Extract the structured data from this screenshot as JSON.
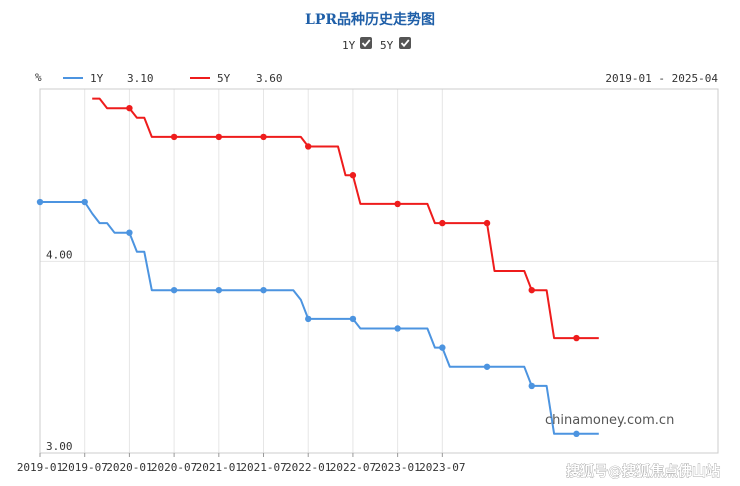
{
  "chart_data": {
    "type": "line",
    "title": "LPR品种历史走势图",
    "ylabel": "%",
    "date_range_label": "2019-01 - 2025-04",
    "ylim": [
      3.0,
      4.9
    ],
    "y_ticks": [
      "4.00",
      "3.00"
    ],
    "y_tick_values": [
      4.0,
      3.0
    ],
    "x_tick_labels": [
      "2019-01",
      "2019-07",
      "2020-01",
      "2020-07",
      "2021-01",
      "2021-07",
      "2022-01",
      "2022-07",
      "2023-01",
      "2023-07"
    ],
    "x_tick_values": [
      "2019-01",
      "2019-07",
      "2020-01",
      "2020-07",
      "2021-01",
      "2021-07",
      "2022-01",
      "2022-07",
      "2023-01",
      "2023-07"
    ],
    "x_range": [
      "2019-01",
      "2026-08"
    ],
    "grid": true,
    "checkboxes": [
      {
        "label": "1Y",
        "checked": true
      },
      {
        "label": "5Y",
        "checked": true
      }
    ],
    "series": [
      {
        "name": "1Y",
        "legend_value": "3.10",
        "color": "#4c94e0",
        "points": [
          [
            "2019-01",
            4.31
          ],
          [
            "2019-07",
            4.31
          ],
          [
            "2019-08",
            4.25
          ],
          [
            "2019-09",
            4.2
          ],
          [
            "2019-10",
            4.2
          ],
          [
            "2019-11",
            4.15
          ],
          [
            "2019-12",
            4.15
          ],
          [
            "2020-01",
            4.15
          ],
          [
            "2020-02",
            4.05
          ],
          [
            "2020-03",
            4.05
          ],
          [
            "2020-04",
            3.85
          ],
          [
            "2020-05",
            3.85
          ],
          [
            "2020-07",
            3.85
          ],
          [
            "2021-01",
            3.85
          ],
          [
            "2021-07",
            3.85
          ],
          [
            "2021-11",
            3.85
          ],
          [
            "2021-12",
            3.8
          ],
          [
            "2022-01",
            3.7
          ],
          [
            "2022-07",
            3.7
          ],
          [
            "2022-08",
            3.65
          ],
          [
            "2023-01",
            3.65
          ],
          [
            "2023-05",
            3.65
          ],
          [
            "2023-06",
            3.55
          ],
          [
            "2023-07",
            3.55
          ],
          [
            "2023-08",
            3.45
          ],
          [
            "2024-01",
            3.45
          ],
          [
            "2024-06",
            3.45
          ],
          [
            "2024-07",
            3.35
          ],
          [
            "2024-08",
            3.35
          ],
          [
            "2024-09",
            3.35
          ],
          [
            "2024-10",
            3.1
          ],
          [
            "2025-01",
            3.1
          ],
          [
            "2025-04",
            3.1
          ]
        ],
        "markers": [
          "2019-01",
          "2019-07",
          "2020-01",
          "2020-07",
          "2021-01",
          "2021-07",
          "2022-01",
          "2022-07",
          "2023-01",
          "2023-07",
          "2024-01",
          "2024-07",
          "2025-01"
        ]
      },
      {
        "name": "5Y",
        "legend_value": "3.60",
        "color": "#ee1c1c",
        "points": [
          [
            "2019-08",
            4.85
          ],
          [
            "2019-09",
            4.85
          ],
          [
            "2019-10",
            4.8
          ],
          [
            "2019-11",
            4.8
          ],
          [
            "2019-12",
            4.8
          ],
          [
            "2020-01",
            4.8
          ],
          [
            "2020-02",
            4.75
          ],
          [
            "2020-03",
            4.75
          ],
          [
            "2020-04",
            4.65
          ],
          [
            "2020-07",
            4.65
          ],
          [
            "2021-01",
            4.65
          ],
          [
            "2021-07",
            4.65
          ],
          [
            "2021-12",
            4.65
          ],
          [
            "2022-01",
            4.6
          ],
          [
            "2022-03",
            4.6
          ],
          [
            "2022-05",
            4.6
          ],
          [
            "2022-06",
            4.45
          ],
          [
            "2022-07",
            4.45
          ],
          [
            "2022-08",
            4.3
          ],
          [
            "2023-01",
            4.3
          ],
          [
            "2023-05",
            4.3
          ],
          [
            "2023-06",
            4.2
          ],
          [
            "2023-07",
            4.2
          ],
          [
            "2024-01",
            4.2
          ],
          [
            "2024-02",
            3.95
          ],
          [
            "2024-06",
            3.95
          ],
          [
            "2024-07",
            3.85
          ],
          [
            "2024-09",
            3.85
          ],
          [
            "2024-10",
            3.6
          ],
          [
            "2025-01",
            3.6
          ],
          [
            "2025-04",
            3.6
          ]
        ],
        "markers": [
          "2020-01",
          "2020-07",
          "2021-01",
          "2021-07",
          "2022-01",
          "2022-07",
          "2023-01",
          "2023-07",
          "2024-01",
          "2024-07",
          "2025-01"
        ]
      }
    ]
  },
  "watermark": "chinamoney.com.cn",
  "source_credit": "搜狐号@搜狐焦点佛山站"
}
